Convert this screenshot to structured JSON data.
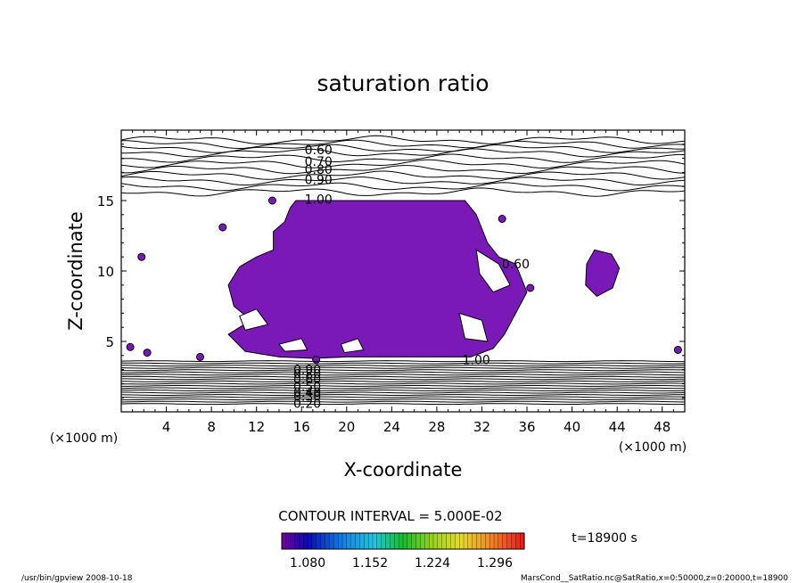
{
  "chart_data": {
    "type": "heatmap",
    "title": "saturation ratio",
    "xlabel": "X-coordinate",
    "ylabel": "Z-coordinate",
    "x_unit": "(×1000 m)",
    "y_unit": "(×1000 m)",
    "xlim": [
      0,
      50
    ],
    "ylim": [
      0,
      20
    ],
    "x_ticks": [
      "4",
      "8",
      "12",
      "16",
      "20",
      "24",
      "28",
      "32",
      "36",
      "40",
      "44",
      "48"
    ],
    "y_ticks": [
      "5",
      "10",
      "15"
    ],
    "contour_labels": [
      "0.60",
      "0.70",
      "0.80",
      "0.90",
      "1.00",
      "0.60",
      "1.00",
      "0.90",
      "0.80",
      "0.60",
      "0.50",
      "0.40",
      "0.30",
      "0.20"
    ],
    "contour_interval": "CONTOUR INTERVAL = 5.000E-02",
    "colorbar": {
      "ticks": [
        "1.080",
        "1.152",
        "1.224",
        "1.296"
      ],
      "min": 1.05,
      "max": 1.33
    },
    "time_label": "t=18900 s",
    "fill_color": "#7a18b8"
  },
  "footer": {
    "left": "/usr/bin/gpview   2008-10-18",
    "right": "MarsCond__SatRatio.nc@SatRatio,x=0:50000,z=0:20000,t=18900"
  }
}
